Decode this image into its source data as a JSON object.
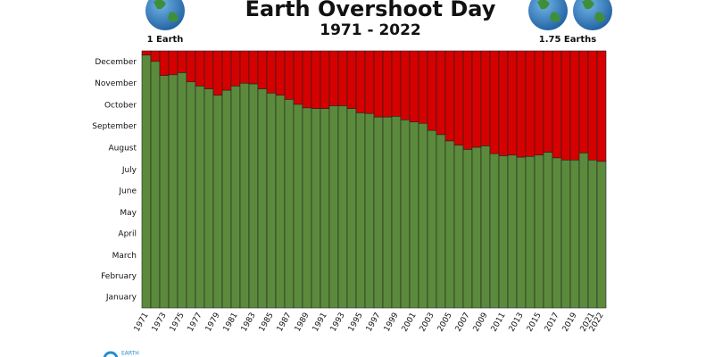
{
  "chart_data": {
    "type": "bar",
    "title": "Earth Overshoot Day",
    "subtitle": "1971 - 2022",
    "left_caption": "1 Earth",
    "right_caption": "1.75 Earths",
    "footer": "EARTH",
    "categories": [
      "1971",
      null,
      "1973",
      null,
      "1975",
      null,
      "1977",
      null,
      "1979",
      null,
      "1981",
      null,
      "1983",
      null,
      "1985",
      null,
      "1987",
      null,
      "1989",
      null,
      "1991",
      null,
      "1993",
      null,
      "1995",
      null,
      "1997",
      null,
      "1999",
      null,
      "2001",
      null,
      "2003",
      null,
      "2005",
      null,
      "2007",
      null,
      "2009",
      null,
      "2011",
      null,
      "2013",
      null,
      "2015",
      null,
      "2017",
      null,
      "2019",
      null,
      "2021",
      "2022"
    ],
    "values": [
      359,
      350,
      330,
      331,
      334,
      321,
      315,
      311,
      302,
      309,
      315,
      319,
      318,
      311,
      305,
      302,
      296,
      289,
      284,
      283,
      283,
      287,
      287,
      283,
      277,
      276,
      271,
      271,
      272,
      267,
      264,
      262,
      252,
      246,
      237,
      231,
      225,
      228,
      230,
      219,
      216,
      217,
      214,
      215,
      217,
      221,
      213,
      210,
      210,
      220,
      210,
      208
    ],
    "color": "#5b8a3c",
    "remainder_color": "#d50000",
    "ylim": [
      0,
      365
    ],
    "yticks": [
      {
        "value": 15,
        "label": "January"
      },
      {
        "value": 45,
        "label": "February"
      },
      {
        "value": 74,
        "label": "March"
      },
      {
        "value": 105,
        "label": "April"
      },
      {
        "value": 135,
        "label": "May"
      },
      {
        "value": 166,
        "label": "June"
      },
      {
        "value": 196,
        "label": "July"
      },
      {
        "value": 227,
        "label": "August"
      },
      {
        "value": 258,
        "label": "September"
      },
      {
        "value": 288,
        "label": "October"
      },
      {
        "value": 319,
        "label": "November"
      },
      {
        "value": 349,
        "label": "December"
      }
    ],
    "grid": false
  }
}
